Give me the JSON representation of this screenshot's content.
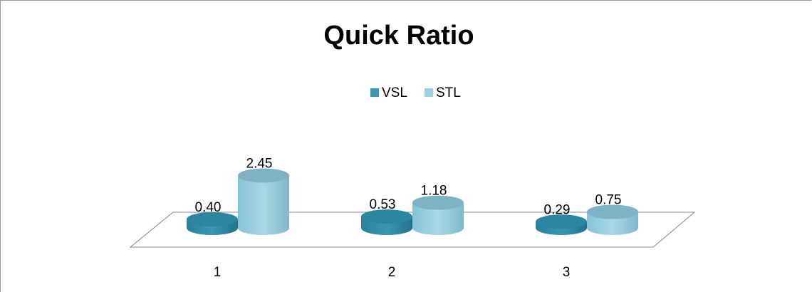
{
  "chart_data": {
    "type": "bar3d",
    "title": "Quick Ratio",
    "categories": [
      "1",
      "2",
      "3"
    ],
    "series": [
      {
        "name": "VSL",
        "color": "#3a97b3",
        "values": [
          0.4,
          0.53,
          0.29
        ],
        "value_labels": [
          "0.40",
          "0.53",
          "0.29"
        ]
      },
      {
        "name": "STL",
        "color": "#9dd1e2",
        "values": [
          2.45,
          1.18,
          0.75
        ],
        "value_labels": [
          "2.45",
          "1.18",
          "0.75"
        ]
      }
    ],
    "legend": "top"
  }
}
